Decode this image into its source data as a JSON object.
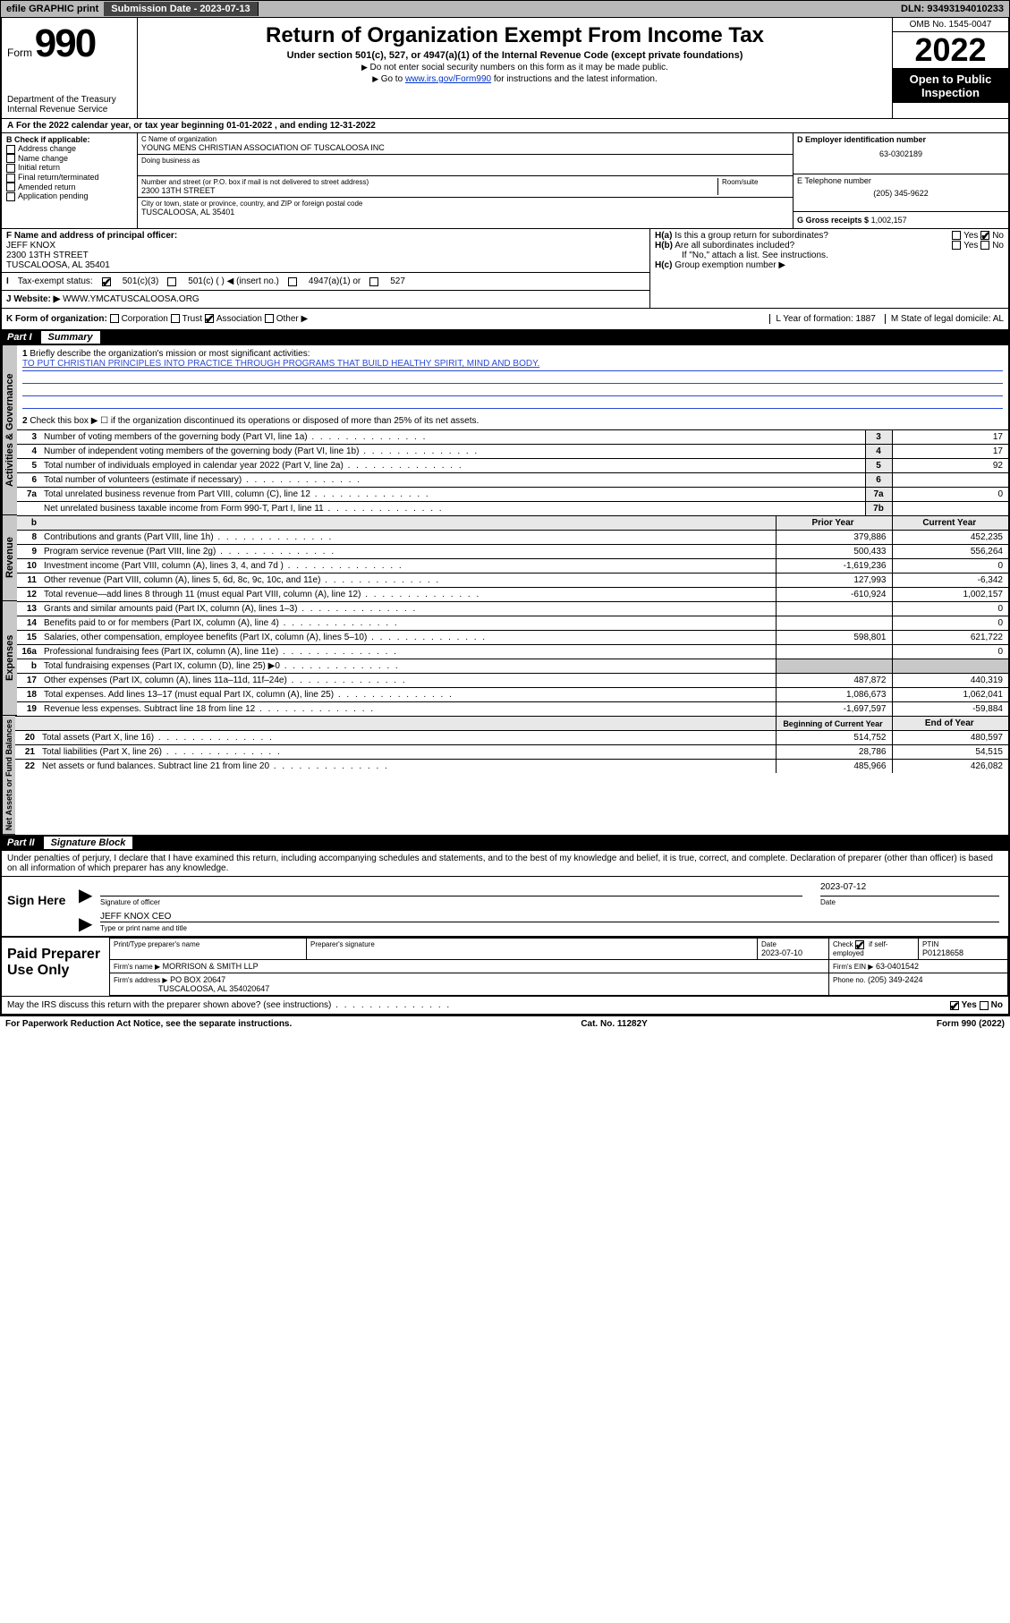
{
  "topbar": {
    "efile": "efile GRAPHIC print",
    "subdate_lbl": "Submission Date - 2023-07-13",
    "dln": "DLN: 93493194010233"
  },
  "header": {
    "form_lbl": "Form",
    "form_num": "990",
    "dept": "Department of the Treasury\nInternal Revenue Service",
    "title": "Return of Organization Exempt From Income Tax",
    "sub1": "Under section 501(c), 527, or 4947(a)(1) of the Internal Revenue Code (except private foundations)",
    "sub2": "Do not enter social security numbers on this form as it may be made public.",
    "sub3_pre": "Go to ",
    "sub3_link": "www.irs.gov/Form990",
    "sub3_post": " for instructions and the latest information.",
    "omb": "OMB No. 1545-0047",
    "year": "2022",
    "otp": "Open to Public Inspection"
  },
  "line_a": "For the 2022 calendar year, or tax year beginning 01-01-2022   , and ending 12-31-2022",
  "boxB": {
    "hdr": "B Check if applicable:",
    "items": [
      "Address change",
      "Name change",
      "Initial return",
      "Final return/terminated",
      "Amended return",
      "Application pending"
    ]
  },
  "boxC": {
    "lbl": "C Name of organization",
    "name": "YOUNG MENS CHRISTIAN ASSOCIATION OF TUSCALOOSA INC",
    "dba_lbl": "Doing business as",
    "addr_lbl": "Number and street (or P.O. box if mail is not delivered to street address)",
    "room_lbl": "Room/suite",
    "addr": "2300 13TH STREET",
    "city_lbl": "City or town, state or province, country, and ZIP or foreign postal code",
    "city": "TUSCALOOSA, AL  35401"
  },
  "boxD": {
    "lbl": "D Employer identification number",
    "val": "63-0302189"
  },
  "boxE": {
    "lbl": "E Telephone number",
    "val": "(205) 345-9622"
  },
  "boxG": {
    "lbl": "G Gross receipts $",
    "val": "1,002,157"
  },
  "boxF": {
    "lbl": "F Name and address of principal officer:",
    "name": "JEFF KNOX",
    "addr1": "2300 13TH STREET",
    "addr2": "TUSCALOOSA, AL  35401"
  },
  "boxH": {
    "a": "Is this a group return for subordinates?",
    "b": "Are all subordinates included?",
    "bnote": "If \"No,\" attach a list. See instructions.",
    "c": "Group exemption number ▶"
  },
  "boxI": {
    "lbl": "Tax-exempt status:",
    "opts": [
      "501(c)(3)",
      "501(c) (  ) ◀ (insert no.)",
      "4947(a)(1) or",
      "527"
    ]
  },
  "boxJ": {
    "lbl": "Website: ▶",
    "val": "WWW.YMCATUSCALOOSA.ORG"
  },
  "boxK": {
    "lbl": "K Form of organization:",
    "opts": [
      "Corporation",
      "Trust",
      "Association",
      "Other ▶"
    ]
  },
  "boxL": {
    "lbl": "L Year of formation: 1887"
  },
  "boxM": {
    "lbl": "M State of legal domicile: AL"
  },
  "part1": {
    "hdr_part": "Part I",
    "hdr_ttl": "Summary",
    "l1": "Briefly describe the organization's mission or most significant activities:",
    "mission": "TO PUT CHRISTIAN PRINCIPLES INTO PRACTICE THROUGH PROGRAMS THAT BUILD HEALTHY SPIRIT, MIND AND BODY.",
    "l2": "Check this box ▶ ☐  if the organization discontinued its operations or disposed of more than 25% of its net assets."
  },
  "gov_rows": [
    {
      "n": "3",
      "t": "Number of voting members of the governing body (Part VI, line 1a)",
      "box": "3",
      "v": "17"
    },
    {
      "n": "4",
      "t": "Number of independent voting members of the governing body (Part VI, line 1b)",
      "box": "4",
      "v": "17"
    },
    {
      "n": "5",
      "t": "Total number of individuals employed in calendar year 2022 (Part V, line 2a)",
      "box": "5",
      "v": "92"
    },
    {
      "n": "6",
      "t": "Total number of volunteers (estimate if necessary)",
      "box": "6",
      "v": ""
    },
    {
      "n": "7a",
      "t": "Total unrelated business revenue from Part VIII, column (C), line 12",
      "box": "7a",
      "v": "0"
    },
    {
      "n": "",
      "t": "Net unrelated business taxable income from Form 990-T, Part I, line 11",
      "box": "7b",
      "v": ""
    }
  ],
  "col_hdr": {
    "py": "Prior Year",
    "cy": "Current Year",
    "boy": "Beginning of Current Year",
    "eoy": "End of Year"
  },
  "rev_rows": [
    {
      "n": "8",
      "t": "Contributions and grants (Part VIII, line 1h)",
      "py": "379,886",
      "cy": "452,235"
    },
    {
      "n": "9",
      "t": "Program service revenue (Part VIII, line 2g)",
      "py": "500,433",
      "cy": "556,264"
    },
    {
      "n": "10",
      "t": "Investment income (Part VIII, column (A), lines 3, 4, and 7d )",
      "py": "-1,619,236",
      "cy": "0"
    },
    {
      "n": "11",
      "t": "Other revenue (Part VIII, column (A), lines 5, 6d, 8c, 9c, 10c, and 11e)",
      "py": "127,993",
      "cy": "-6,342"
    },
    {
      "n": "12",
      "t": "Total revenue—add lines 8 through 11 (must equal Part VIII, column (A), line 12)",
      "py": "-610,924",
      "cy": "1,002,157"
    }
  ],
  "exp_rows": [
    {
      "n": "13",
      "t": "Grants and similar amounts paid (Part IX, column (A), lines 1–3)",
      "py": "",
      "cy": "0"
    },
    {
      "n": "14",
      "t": "Benefits paid to or for members (Part IX, column (A), line 4)",
      "py": "",
      "cy": "0"
    },
    {
      "n": "15",
      "t": "Salaries, other compensation, employee benefits (Part IX, column (A), lines 5–10)",
      "py": "598,801",
      "cy": "621,722"
    },
    {
      "n": "16a",
      "t": "Professional fundraising fees (Part IX, column (A), line 11e)",
      "py": "",
      "cy": "0"
    },
    {
      "n": "b",
      "t": "Total fundraising expenses (Part IX, column (D), line 25) ▶0",
      "py": "gray",
      "cy": "gray"
    },
    {
      "n": "17",
      "t": "Other expenses (Part IX, column (A), lines 11a–11d, 11f–24e)",
      "py": "487,872",
      "cy": "440,319"
    },
    {
      "n": "18",
      "t": "Total expenses. Add lines 13–17 (must equal Part IX, column (A), line 25)",
      "py": "1,086,673",
      "cy": "1,062,041"
    },
    {
      "n": "19",
      "t": "Revenue less expenses. Subtract line 18 from line 12",
      "py": "-1,697,597",
      "cy": "-59,884"
    }
  ],
  "na_rows": [
    {
      "n": "20",
      "t": "Total assets (Part X, line 16)",
      "py": "514,752",
      "cy": "480,597"
    },
    {
      "n": "21",
      "t": "Total liabilities (Part X, line 26)",
      "py": "28,786",
      "cy": "54,515"
    },
    {
      "n": "22",
      "t": "Net assets or fund balances. Subtract line 21 from line 20",
      "py": "485,966",
      "cy": "426,082"
    }
  ],
  "part2": {
    "hdr_part": "Part II",
    "hdr_ttl": "Signature Block",
    "decl": "Under penalties of perjury, I declare that I have examined this return, including accompanying schedules and statements, and to the best of my knowledge and belief, it is true, correct, and complete. Declaration of preparer (other than officer) is based on all information of which preparer has any knowledge."
  },
  "sign": {
    "here": "Sign Here",
    "sig_lbl": "Signature of officer",
    "date_lbl": "Date",
    "date": "2023-07-12",
    "name": "JEFF KNOX CEO",
    "name_lbl": "Type or print name and title"
  },
  "prep": {
    "lbl": "Paid Preparer Use Only",
    "h1": "Print/Type preparer's name",
    "h2": "Preparer's signature",
    "h3": "Date",
    "h3v": "2023-07-10",
    "h4": "Check ☑ if self-employed",
    "h5": "PTIN",
    "h5v": "P01218658",
    "firm_lbl": "Firm's name   ▶",
    "firm": "MORRISON & SMITH LLP",
    "ein_lbl": "Firm's EIN ▶",
    "ein": "63-0401542",
    "addr_lbl": "Firm's address ▶",
    "addr1": "PO BOX 20647",
    "addr2": "TUSCALOOSA, AL  354020647",
    "phone_lbl": "Phone no.",
    "phone": "(205) 349-2424"
  },
  "discuss": "May the IRS discuss this return with the preparer shown above? (see instructions)",
  "footer": {
    "l": "For Paperwork Reduction Act Notice, see the separate instructions.",
    "c": "Cat. No. 11282Y",
    "r": "Form 990 (2022)"
  },
  "vtabs": {
    "gov": "Activities & Governance",
    "rev": "Revenue",
    "exp": "Expenses",
    "na": "Net Assets or Fund Balances"
  }
}
